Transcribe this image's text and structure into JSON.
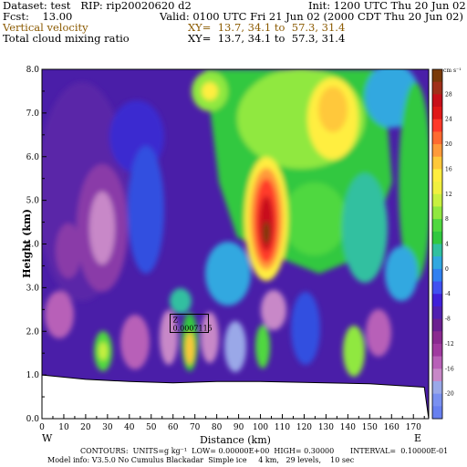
{
  "header": {
    "dataset": "Dataset: test   RIP: rip20020620 d2",
    "init": "Init: 1200 UTC Thu 20 Jun 02",
    "fcst": "Fcst:    13.00",
    "valid": "Valid: 0100 UTC Fri 21 Jun 02 (2000 CDT Thu 20 Jun 02)",
    "var1": "Vertical velocity",
    "xy1": "XY=  13.7, 34.1 to  57.3, 31.4",
    "var2": "Total cloud mixing ratio",
    "xy2": "XY=  13.7, 34.1 to  57.3, 31.4"
  },
  "colorbar": {
    "units": "cm s⁻¹",
    "labels": [
      "28",
      "24",
      "20",
      "16",
      "12",
      "8",
      "4",
      "0",
      "-4",
      "-8",
      "-12",
      "-16",
      "-20"
    ],
    "colors": [
      "#7a3a0a",
      "#a0301a",
      "#c8101a",
      "#e01818",
      "#ff3a2a",
      "#ff6a30",
      "#ff9a3a",
      "#ffc83a",
      "#ffee40",
      "#f0f040",
      "#c8f040",
      "#90e840",
      "#50d840",
      "#30c840",
      "#30c0a0",
      "#30a8e0",
      "#3080f0",
      "#4050f0",
      "#4020d8",
      "#5020b0",
      "#6a2090",
      "#8a2a90",
      "#a03aa0",
      "#b860b8",
      "#c888c8",
      "#9aa8e8",
      "#7a90f0",
      "#6880f0"
    ]
  },
  "chart_data": {
    "type": "heatmap",
    "title": "",
    "xlabel": "Distance (km)",
    "ylabel": "Height (km)",
    "xlim": [
      0,
      175
    ],
    "ylim": [
      0,
      8
    ],
    "xticks": [
      "0",
      "10",
      "20",
      "30",
      "40",
      "50",
      "60",
      "70",
      "80",
      "90",
      "100",
      "110",
      "120",
      "130",
      "140",
      "150",
      "160",
      "170"
    ],
    "yticks": [
      "0.0",
      "1.0",
      "2.0",
      "3.0",
      "4.0",
      "5.0",
      "6.0",
      "7.0",
      "8.0"
    ],
    "x_ends": [
      "W",
      "E"
    ],
    "terrain_km": [
      [
        0,
        1.0
      ],
      [
        20,
        0.9
      ],
      [
        40,
        0.85
      ],
      [
        60,
        0.82
      ],
      [
        80,
        0.85
      ],
      [
        100,
        0.85
      ],
      [
        130,
        0.82
      ],
      [
        150,
        0.8
      ],
      [
        175,
        0.72
      ]
    ],
    "annotation": {
      "x": 67,
      "y": 2.1,
      "text": "Z",
      "value": "0.0007115"
    }
  },
  "footer": {
    "line1": "CONTOURS:  UNITS=g kg⁻¹  LOW= 0.00000E+00  HIGH= 0.30000       INTERVAL=  0.10000E-01",
    "line2": "Model info: V3.5.0 No Cumulus Blackadar  Simple ice     4 km,   29 levels,    10 sec"
  }
}
